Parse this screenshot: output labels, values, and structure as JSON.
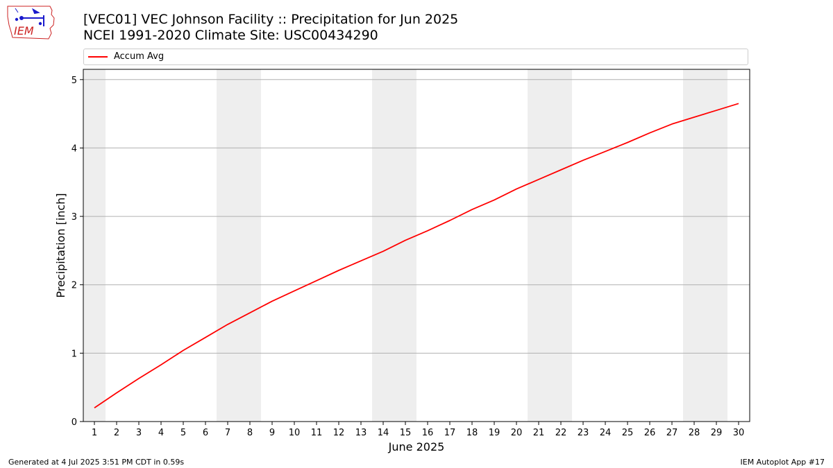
{
  "header": {
    "title_line1": "[VEC01] VEC Johnson Facility :: Precipitation for Jun 2025",
    "title_line2": "NCEI 1991-2020 Climate Site: USC00434290",
    "logo_text": "IEM"
  },
  "footer": {
    "generated": "Generated at 4 Jul 2025 3:51 PM CDT in 0.59s",
    "app": "IEM Autoplot App #17"
  },
  "colors": {
    "line": "#ff0000",
    "weekend_shade": "#eeeeee",
    "grid": "#b0b0b0",
    "logo": "#cc2222"
  },
  "chart_data": {
    "type": "line",
    "title": "[VEC01] VEC Johnson Facility :: Precipitation for Jun 2025",
    "xlabel": "June 2025",
    "ylabel": "Precipitation [inch]",
    "x": [
      1,
      2,
      3,
      4,
      5,
      6,
      7,
      8,
      9,
      10,
      11,
      12,
      13,
      14,
      15,
      16,
      17,
      18,
      19,
      20,
      21,
      22,
      23,
      24,
      25,
      26,
      27,
      28,
      29,
      30
    ],
    "xlim": [
      0.5,
      30.5
    ],
    "ylim": [
      0,
      5.15
    ],
    "yticks": [
      0,
      1,
      2,
      3,
      4,
      5
    ],
    "grid": "y",
    "legend": "top",
    "weekend_days": [
      1,
      7,
      8,
      14,
      15,
      21,
      22,
      28,
      29
    ],
    "series": [
      {
        "name": "Accum Avg",
        "values": [
          0.2,
          0.42,
          0.63,
          0.83,
          1.04,
          1.23,
          1.42,
          1.59,
          1.76,
          1.91,
          2.06,
          2.21,
          2.35,
          2.49,
          2.65,
          2.79,
          2.94,
          3.1,
          3.24,
          3.4,
          3.54,
          3.68,
          3.82,
          3.95,
          4.08,
          4.22,
          4.35,
          4.45,
          4.55,
          4.65
        ]
      }
    ]
  }
}
